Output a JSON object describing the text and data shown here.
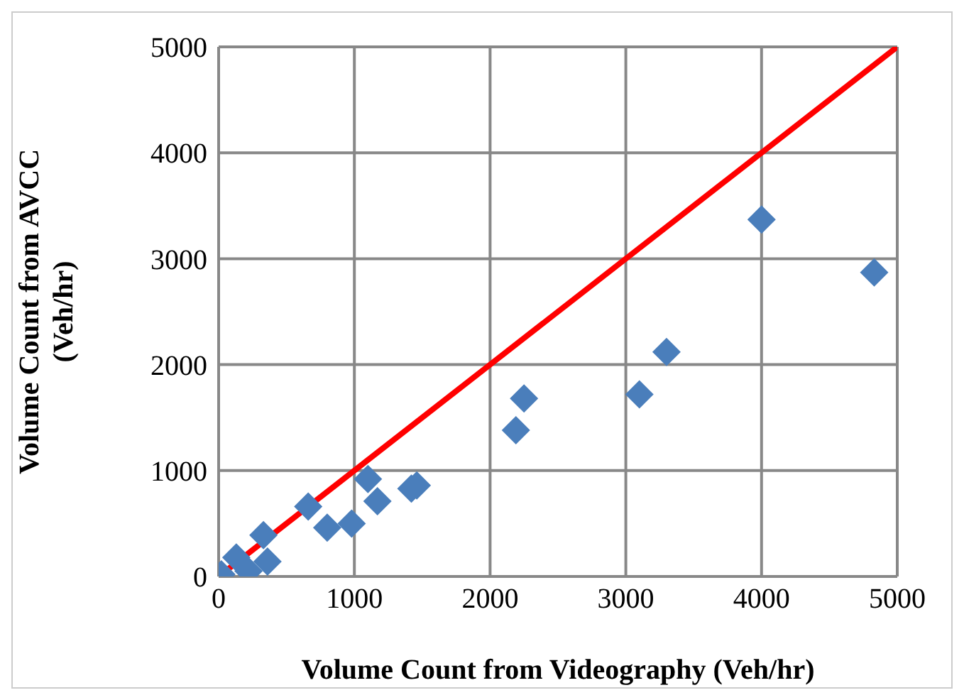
{
  "chart_data": {
    "type": "scatter",
    "xlabel": "Volume Count from Videography (Veh/hr)",
    "ylabel": "Volume Count from AVCC (Veh/hr)",
    "xlim": [
      0,
      5000
    ],
    "ylim": [
      0,
      5000
    ],
    "xticks": [
      0,
      1000,
      2000,
      3000,
      4000,
      5000
    ],
    "yticks": [
      0,
      1000,
      2000,
      3000,
      4000,
      5000
    ],
    "grid": true,
    "marker": "diamond",
    "series": [
      {
        "type": "line",
        "color": "#ff0000",
        "marker": "none",
        "x": [
          0,
          5000
        ],
        "values": [
          0,
          5000
        ]
      },
      {
        "color": "#4a7ebb",
        "x": [
          20,
          130,
          220,
          330,
          360,
          660,
          800,
          980,
          1100,
          1170,
          1420,
          1460,
          2190,
          2250,
          3100,
          3300,
          4000,
          4830
        ],
        "values": [
          20,
          180,
          50,
          390,
          140,
          660,
          460,
          500,
          920,
          710,
          830,
          860,
          1380,
          1680,
          1720,
          2120,
          3370,
          2870
        ]
      }
    ]
  }
}
